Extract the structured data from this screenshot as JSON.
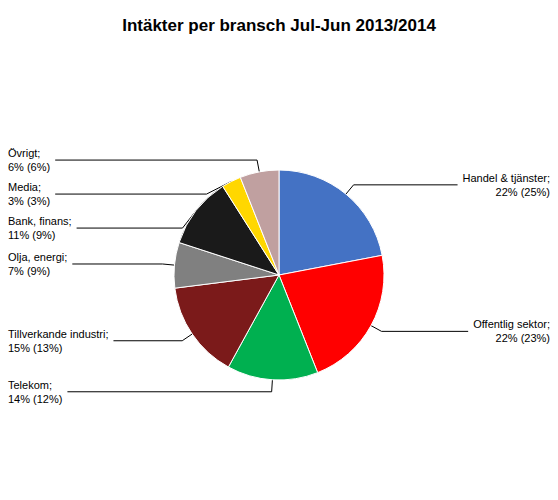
{
  "chart_data": {
    "type": "pie",
    "title": "Intäkter per bransch Jul-Jun 2013/2014",
    "categories": [
      "Handel & tjänster;\n22% (25%)",
      "Offentlig sektor;\n22% (23%)",
      "Telekom;\n14% (12%)",
      "Tillverkande industri;\n15% (13%)",
      "Olja, energi;\n7% (9%)",
      "Bank, finans;\n11% (9%)",
      "Media;\n3% (3%)",
      "Övrigt;\n6% (6%)"
    ],
    "values": [
      22,
      22,
      14,
      15,
      7,
      11,
      3,
      6
    ],
    "colors": [
      "#4472C4",
      "#FF0000",
      "#00B050",
      "#7B1A1A",
      "#808080",
      "#1A1A1A",
      "#FFD700",
      "#C0A0A0"
    ]
  }
}
